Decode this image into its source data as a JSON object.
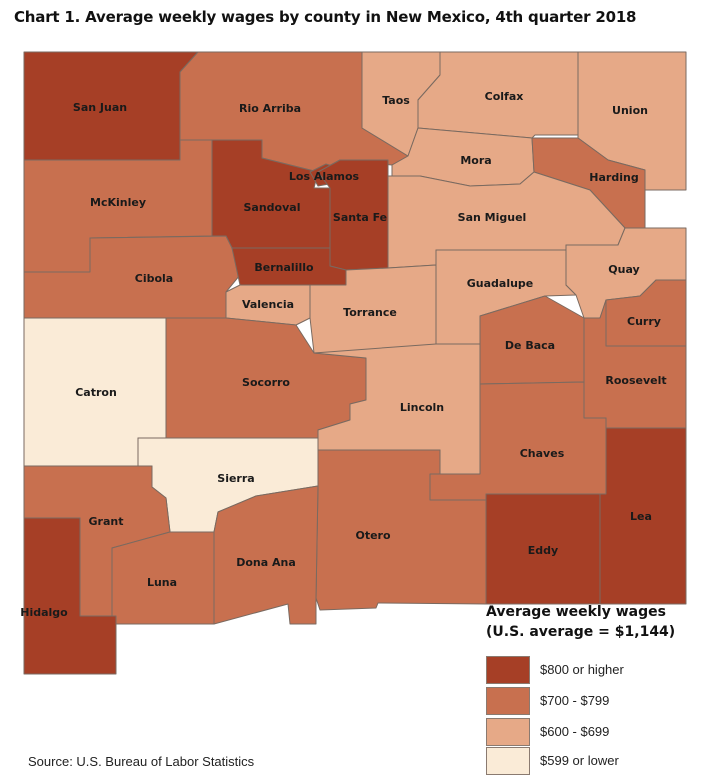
{
  "title": "Chart 1. Average weekly wages by county in New Mexico, 4th quarter 2018",
  "colors": {
    "800_or_higher": "#a63f26",
    "700_799": "#c8704f",
    "600_699": "#e6a987",
    "599_or_lower": "#faebd7"
  },
  "counties": [
    {
      "name": "San Juan",
      "wage_class": "800_or_higher"
    },
    {
      "name": "Rio Arriba",
      "wage_class": "700_799"
    },
    {
      "name": "Taos",
      "wage_class": "600_699"
    },
    {
      "name": "Colfax",
      "wage_class": "600_699"
    },
    {
      "name": "Union",
      "wage_class": "600_699"
    },
    {
      "name": "McKinley",
      "wage_class": "700_799"
    },
    {
      "name": "Sandoval",
      "wage_class": "800_or_higher"
    },
    {
      "name": "Los Alamos",
      "wage_class": "800_or_higher"
    },
    {
      "name": "Santa Fe",
      "wage_class": "800_or_higher"
    },
    {
      "name": "Mora",
      "wage_class": "600_699"
    },
    {
      "name": "Harding",
      "wage_class": "700_799"
    },
    {
      "name": "San Miguel",
      "wage_class": "600_699"
    },
    {
      "name": "Cibola",
      "wage_class": "700_799"
    },
    {
      "name": "Bernalillo",
      "wage_class": "800_or_higher"
    },
    {
      "name": "Valencia",
      "wage_class": "600_699"
    },
    {
      "name": "Torrance",
      "wage_class": "600_699"
    },
    {
      "name": "Guadalupe",
      "wage_class": "600_699"
    },
    {
      "name": "Quay",
      "wage_class": "600_699"
    },
    {
      "name": "Curry",
      "wage_class": "700_799"
    },
    {
      "name": "De Baca",
      "wage_class": "700_799"
    },
    {
      "name": "Roosevelt",
      "wage_class": "700_799"
    },
    {
      "name": "Catron",
      "wage_class": "599_or_lower"
    },
    {
      "name": "Socorro",
      "wage_class": "700_799"
    },
    {
      "name": "Lincoln",
      "wage_class": "600_699"
    },
    {
      "name": "Chaves",
      "wage_class": "700_799"
    },
    {
      "name": "Sierra",
      "wage_class": "599_or_lower"
    },
    {
      "name": "Grant",
      "wage_class": "700_799"
    },
    {
      "name": "Otero",
      "wage_class": "700_799"
    },
    {
      "name": "Eddy",
      "wage_class": "800_or_higher"
    },
    {
      "name": "Lea",
      "wage_class": "800_or_higher"
    },
    {
      "name": "Luna",
      "wage_class": "700_799"
    },
    {
      "name": "Dona Ana",
      "wage_class": "700_799"
    },
    {
      "name": "Hidalgo",
      "wage_class": "800_or_higher"
    }
  ],
  "legend": {
    "title_line1": "Average weekly wages",
    "title_line2": "(U.S. average = $1,144)",
    "items": [
      {
        "key": "800_or_higher",
        "label": "$800 or higher"
      },
      {
        "key": "700_799",
        "label": "$700 - $799"
      },
      {
        "key": "600_699",
        "label": "$600 - $699"
      },
      {
        "key": "599_or_lower",
        "label": "$599 or lower"
      }
    ]
  },
  "source": "Source: U.S. Bureau of Labor Statistics"
}
